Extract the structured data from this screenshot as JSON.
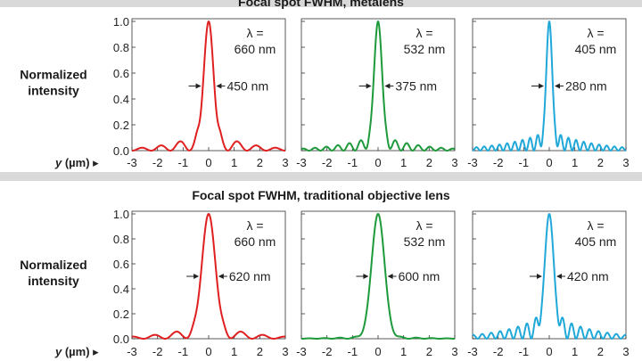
{
  "chart_data": [
    {
      "type": "line",
      "title": "Focal spot FWHM, metalens",
      "ylabel": [
        "Normalized",
        "intensity"
      ],
      "xlabel": "y (µm) ▸",
      "xlim": [
        -3,
        3
      ],
      "ylim": [
        0,
        1.0
      ],
      "x_ticks": [
        "-3",
        "-2",
        "-1",
        "0",
        "1",
        "2",
        "3"
      ],
      "y_ticks": [
        "0.0",
        "0.2",
        "0.4",
        "0.6",
        "0.8",
        "1.0"
      ],
      "grid": false,
      "panels": [
        {
          "color": "#e02020",
          "lambda_label": "λ =",
          "wavelength": "660 nm",
          "fwhm": "450 nm",
          "fwhm_um": 0.45,
          "lobe_height": 0.17,
          "lobe_period": 0.75,
          "decay": 1.3
        },
        {
          "color": "#1e9a3c",
          "lambda_label": "λ =",
          "wavelength": "532 nm",
          "fwhm": "375 nm",
          "fwhm_um": 0.375,
          "lobe_height": 0.13,
          "lobe_period": 0.45,
          "decay": 1.4
        },
        {
          "color": "#20a8d8",
          "lambda_label": "λ =",
          "wavelength": "405 nm",
          "fwhm": "280 nm",
          "fwhm_um": 0.28,
          "lobe_height": 0.16,
          "lobe_period": 0.3,
          "decay": 1.6
        }
      ]
    },
    {
      "type": "line",
      "title": "Focal spot FWHM, traditional objective lens",
      "ylabel": [
        "Normalized",
        "intensity"
      ],
      "xlabel": "y (µm) ▸",
      "xlim": [
        -3,
        3
      ],
      "ylim": [
        0,
        1.0
      ],
      "x_ticks": [
        "-3",
        "-2",
        "-1",
        "0",
        "1",
        "2",
        "3"
      ],
      "y_ticks": [
        "0.0",
        "0.2",
        "0.4",
        "0.6",
        "0.8",
        "1.0"
      ],
      "grid": false,
      "panels": [
        {
          "color": "#e02020",
          "lambda_label": "λ =",
          "wavelength": "660 nm",
          "fwhm": "620 nm",
          "fwhm_um": 0.62,
          "lobe_height": 0.14,
          "lobe_period": 0.85,
          "decay": 1.4
        },
        {
          "color": "#1e9a3c",
          "lambda_label": "λ =",
          "wavelength": "532 nm",
          "fwhm": "600 nm",
          "fwhm_um": 0.6,
          "lobe_height": 0.03,
          "lobe_period": 0.6,
          "decay": 1.2
        },
        {
          "color": "#20a8d8",
          "lambda_label": "λ =",
          "wavelength": "405 nm",
          "fwhm": "420 nm",
          "fwhm_um": 0.42,
          "lobe_height": 0.22,
          "lobe_period": 0.35,
          "decay": 1.5
        }
      ]
    }
  ]
}
